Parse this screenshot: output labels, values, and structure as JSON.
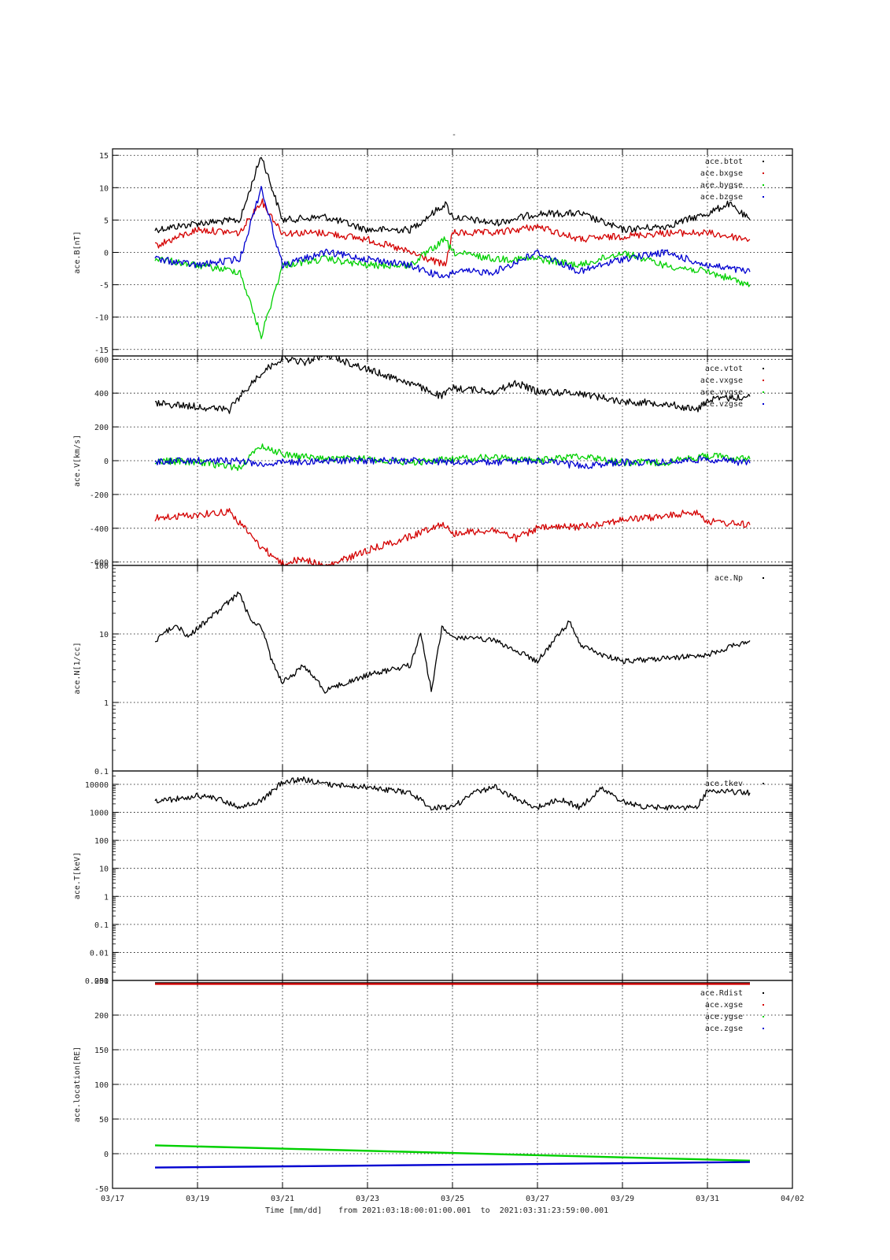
{
  "figure": {
    "title": "-",
    "x_axis_label": "Time [mm/dd]",
    "x_axis_range_label": "from 2021:03:18:00:01:00.001  to  2021:03:31:23:59:00.001",
    "x_ticks": [
      "03/17",
      "03/19",
      "03/21",
      "03/23",
      "03/25",
      "03/27",
      "03/29",
      "03/31",
      "04/02"
    ],
    "x_range_days": [
      0,
      16
    ]
  },
  "colors": {
    "black": "#000000",
    "red": "#d40000",
    "green": "#00d000",
    "blue": "#0000d0"
  },
  "chart_data": [
    {
      "type": "scatter",
      "ylabel": "ace.B[nT]",
      "ylim": [
        -16,
        16
      ],
      "yticks": [
        {
          "v": 15,
          "label": "15"
        },
        {
          "v": 10,
          "label": "10"
        },
        {
          "v": 5,
          "label": "5"
        },
        {
          "v": 0,
          "label": "0"
        },
        {
          "v": -5,
          "label": "-5"
        },
        {
          "v": -10,
          "label": "-10"
        },
        {
          "v": -15,
          "label": "-15"
        }
      ],
      "grid": true,
      "legend_position": "top-right",
      "series": [
        {
          "name": "ace.btot",
          "color": "#000000",
          "x": [
            "03/18",
            "03/19",
            "03/20",
            "03/20 12:00",
            "03/21",
            "03/22",
            "03/23",
            "03/24",
            "03/24 20:00",
            "03/25",
            "03/26",
            "03/27",
            "03/28",
            "03/29",
            "03/30",
            "03/31",
            "03/31 12:00",
            "03/31 23:59"
          ],
          "y": [
            3.5,
            4.5,
            5,
            15,
            5,
            5.5,
            3.5,
            3.5,
            7.5,
            5.5,
            4.5,
            6,
            6,
            3.5,
            4,
            6,
            7.5,
            5
          ]
        },
        {
          "name": "ace.bxgse",
          "color": "#d40000",
          "x": [
            "03/18",
            "03/19",
            "03/20",
            "03/20 12:00",
            "03/21",
            "03/22",
            "03/23",
            "03/24",
            "03/24 20:00",
            "03/25",
            "03/26",
            "03/27",
            "03/28",
            "03/29",
            "03/30",
            "03/31",
            "03/31 23:59"
          ],
          "y": [
            1,
            3.5,
            3,
            8,
            3,
            3,
            2,
            0,
            -2,
            3,
            3,
            4,
            2,
            2.5,
            3,
            3,
            2
          ]
        },
        {
          "name": "ace.bygse",
          "color": "#00d000",
          "x": [
            "03/18",
            "03/19",
            "03/20",
            "03/20 12:00",
            "03/21",
            "03/22",
            "03/23",
            "03/24",
            "03/24 20:00",
            "03/25",
            "03/26",
            "03/27",
            "03/28",
            "03/29",
            "03/30",
            "03/31",
            "03/31 23:59"
          ],
          "y": [
            -1,
            -2,
            -3,
            -13,
            -2,
            -1,
            -2,
            -2,
            2,
            0,
            -1,
            -1,
            -2,
            0,
            -2,
            -3,
            -5
          ]
        },
        {
          "name": "ace.bzgse",
          "color": "#0000d0",
          "x": [
            "03/18",
            "03/19",
            "03/20",
            "03/20 12:00",
            "03/21",
            "03/22",
            "03/23",
            "03/24",
            "03/24 20:00",
            "03/25",
            "03/26",
            "03/27",
            "03/28",
            "03/29",
            "03/30",
            "03/31",
            "03/31 23:59"
          ],
          "y": [
            -1,
            -2,
            -1,
            10,
            -2,
            0,
            -1,
            -2,
            -4,
            -3,
            -3,
            0,
            -3,
            -1,
            0,
            -2,
            -3
          ]
        }
      ]
    },
    {
      "type": "scatter",
      "ylabel": "ace.V[km/s]",
      "ylim": [
        -620,
        620
      ],
      "yticks": [
        {
          "v": 600,
          "label": "600"
        },
        {
          "v": 400,
          "label": "400"
        },
        {
          "v": 200,
          "label": "200"
        },
        {
          "v": 0,
          "label": "0"
        },
        {
          "v": -200,
          "label": "-200"
        },
        {
          "v": -400,
          "label": "-400"
        },
        {
          "v": -600,
          "label": "-600"
        }
      ],
      "grid": true,
      "legend_position": "top-right",
      "series": [
        {
          "name": "ace.vtot",
          "color": "#000000",
          "x": [
            "03/18",
            "03/19",
            "03/19 18:00",
            "03/20",
            "03/20 12:00",
            "03/21",
            "03/21 12:00",
            "03/22",
            "03/23",
            "03/24",
            "03/24 18:00",
            "03/25",
            "03/26",
            "03/26 12:00",
            "03/27",
            "03/28",
            "03/29",
            "03/30",
            "03/30 18:00",
            "03/31",
            "03/31 23:59"
          ],
          "y": [
            340,
            320,
            300,
            380,
            520,
            610,
            580,
            630,
            540,
            460,
            380,
            430,
            410,
            460,
            410,
            400,
            350,
            340,
            300,
            360,
            380
          ]
        },
        {
          "name": "ace.vxgse",
          "color": "#d40000",
          "x": [
            "03/18",
            "03/19",
            "03/19 18:00",
            "03/20",
            "03/20 12:00",
            "03/21",
            "03/21 12:00",
            "03/22",
            "03/23",
            "03/24",
            "03/24 18:00",
            "03/25",
            "03/26",
            "03/26 12:00",
            "03/27",
            "03/28",
            "03/29",
            "03/30",
            "03/30 18:00",
            "03/31",
            "03/31 23:59"
          ],
          "y": [
            -340,
            -320,
            -300,
            -370,
            -510,
            -610,
            -580,
            -630,
            -530,
            -450,
            -370,
            -430,
            -410,
            -460,
            -400,
            -390,
            -350,
            -330,
            -300,
            -360,
            -380
          ]
        },
        {
          "name": "ace.vygse",
          "color": "#00d000",
          "x": [
            "03/18",
            "03/19",
            "03/20",
            "03/20 12:00",
            "03/21",
            "03/22",
            "03/23",
            "03/24",
            "03/25",
            "03/26",
            "03/27",
            "03/28",
            "03/29",
            "03/30",
            "03/31",
            "03/31 23:59"
          ],
          "y": [
            0,
            -10,
            -40,
            90,
            40,
            10,
            10,
            -10,
            10,
            20,
            0,
            30,
            -10,
            -10,
            30,
            10
          ]
        },
        {
          "name": "ace.vzgse",
          "color": "#0000d0",
          "x": [
            "03/18",
            "03/19",
            "03/20",
            "03/20 12:00",
            "03/21",
            "03/22",
            "03/23",
            "03/24",
            "03/25",
            "03/26",
            "03/27",
            "03/28",
            "03/29",
            "03/30",
            "03/31",
            "03/31 23:59"
          ],
          "y": [
            -5,
            0,
            0,
            -20,
            -10,
            0,
            0,
            0,
            -10,
            -10,
            0,
            -30,
            -10,
            -10,
            10,
            -15
          ]
        }
      ]
    },
    {
      "type": "scatter",
      "ylabel": "ace.N[1/cc]",
      "yscale": "log",
      "ylim": [
        0.1,
        100
      ],
      "yticks": [
        {
          "v": 100,
          "label": "100"
        },
        {
          "v": 10,
          "label": "10"
        },
        {
          "v": 1,
          "label": "1"
        },
        {
          "v": 0.1,
          "label": "0.1"
        }
      ],
      "grid": true,
      "legend_position": "top-right",
      "series": [
        {
          "name": "ace.Np",
          "color": "#000000",
          "x": [
            "03/18",
            "03/18 12:00",
            "03/18 18:00",
            "03/20",
            "03/20 06:00",
            "03/20 12:00",
            "03/20 18:00",
            "03/21",
            "03/21 06:00",
            "03/21 12:00",
            "03/22",
            "03/23",
            "03/24",
            "03/24 06:00",
            "03/24 12:00",
            "03/24 18:00",
            "03/25",
            "03/26",
            "03/27",
            "03/27 18:00",
            "03/28",
            "03/28 12:00",
            "03/29",
            "03/30 06:00",
            "03/31",
            "03/31 23:59"
          ],
          "y": [
            8,
            14,
            9,
            40,
            15,
            13,
            4,
            2,
            2.5,
            3.5,
            1.5,
            2.5,
            3.5,
            10,
            1.5,
            12,
            9,
            8,
            4,
            15,
            7,
            5,
            4,
            4.5,
            5,
            8
          ]
        }
      ]
    },
    {
      "type": "scatter",
      "ylabel": "ace.T[keV]",
      "yscale": "log",
      "ylim": [
        0.001,
        30000
      ],
      "yticks": [
        {
          "v": 10000,
          "label": "10000"
        },
        {
          "v": 1000,
          "label": "1000"
        },
        {
          "v": 100,
          "label": "100"
        },
        {
          "v": 10,
          "label": "10"
        },
        {
          "v": 1,
          "label": "1"
        },
        {
          "v": 0.1,
          "label": "0.1"
        },
        {
          "v": 0.01,
          "label": "0.01"
        },
        {
          "v": 0.001,
          "label": "0.001"
        }
      ],
      "grid": true,
      "legend_position": "top-right",
      "series": [
        {
          "name": "ace.tkev",
          "color": "#000000",
          "x": [
            "03/18",
            "03/18 12:00",
            "03/19",
            "03/19 12:00",
            "03/20",
            "03/20 12:00",
            "03/21",
            "03/21 12:00",
            "03/22",
            "03/23",
            "03/24",
            "03/24 12:00",
            "03/25",
            "03/25 12:00",
            "03/26",
            "03/26 12:00",
            "03/27",
            "03/27 12:00",
            "03/28",
            "03/28 12:00",
            "03/29",
            "03/29 12:00",
            "03/30",
            "03/30 18:00",
            "03/31",
            "03/31 23:59"
          ],
          "y": [
            2500,
            3000,
            4000,
            3000,
            1500,
            2500,
            12000,
            15000,
            10000,
            8000,
            5000,
            1500,
            1500,
            5000,
            8000,
            3000,
            1500,
            3000,
            1500,
            7000,
            2500,
            1500,
            1500,
            1500,
            6000,
            5000
          ]
        }
      ]
    },
    {
      "type": "scatter",
      "ylabel": "ace.location[RE]",
      "ylim": [
        -50,
        250
      ],
      "yticks": [
        {
          "v": 250,
          "label": "250"
        },
        {
          "v": 200,
          "label": "200"
        },
        {
          "v": 150,
          "label": "150"
        },
        {
          "v": 100,
          "label": "100"
        },
        {
          "v": 50,
          "label": "50"
        },
        {
          "v": 0,
          "label": "0"
        },
        {
          "v": -50,
          "label": "-50"
        }
      ],
      "grid": true,
      "legend_position": "top-right",
      "series": [
        {
          "name": "ace.Rdist",
          "color": "#000000",
          "x": [
            "03/18",
            "03/31 23:59"
          ],
          "y": [
            246,
            246
          ]
        },
        {
          "name": "ace.xgse",
          "color": "#d40000",
          "x": [
            "03/18",
            "03/31 23:59"
          ],
          "y": [
            245,
            245
          ]
        },
        {
          "name": "ace.ygse",
          "color": "#00d000",
          "x": [
            "03/18",
            "03/31 23:59"
          ],
          "y": [
            12,
            -10
          ]
        },
        {
          "name": "ace.zgse",
          "color": "#0000d0",
          "x": [
            "03/18",
            "03/31 23:59"
          ],
          "y": [
            -20,
            -12
          ]
        }
      ]
    }
  ]
}
